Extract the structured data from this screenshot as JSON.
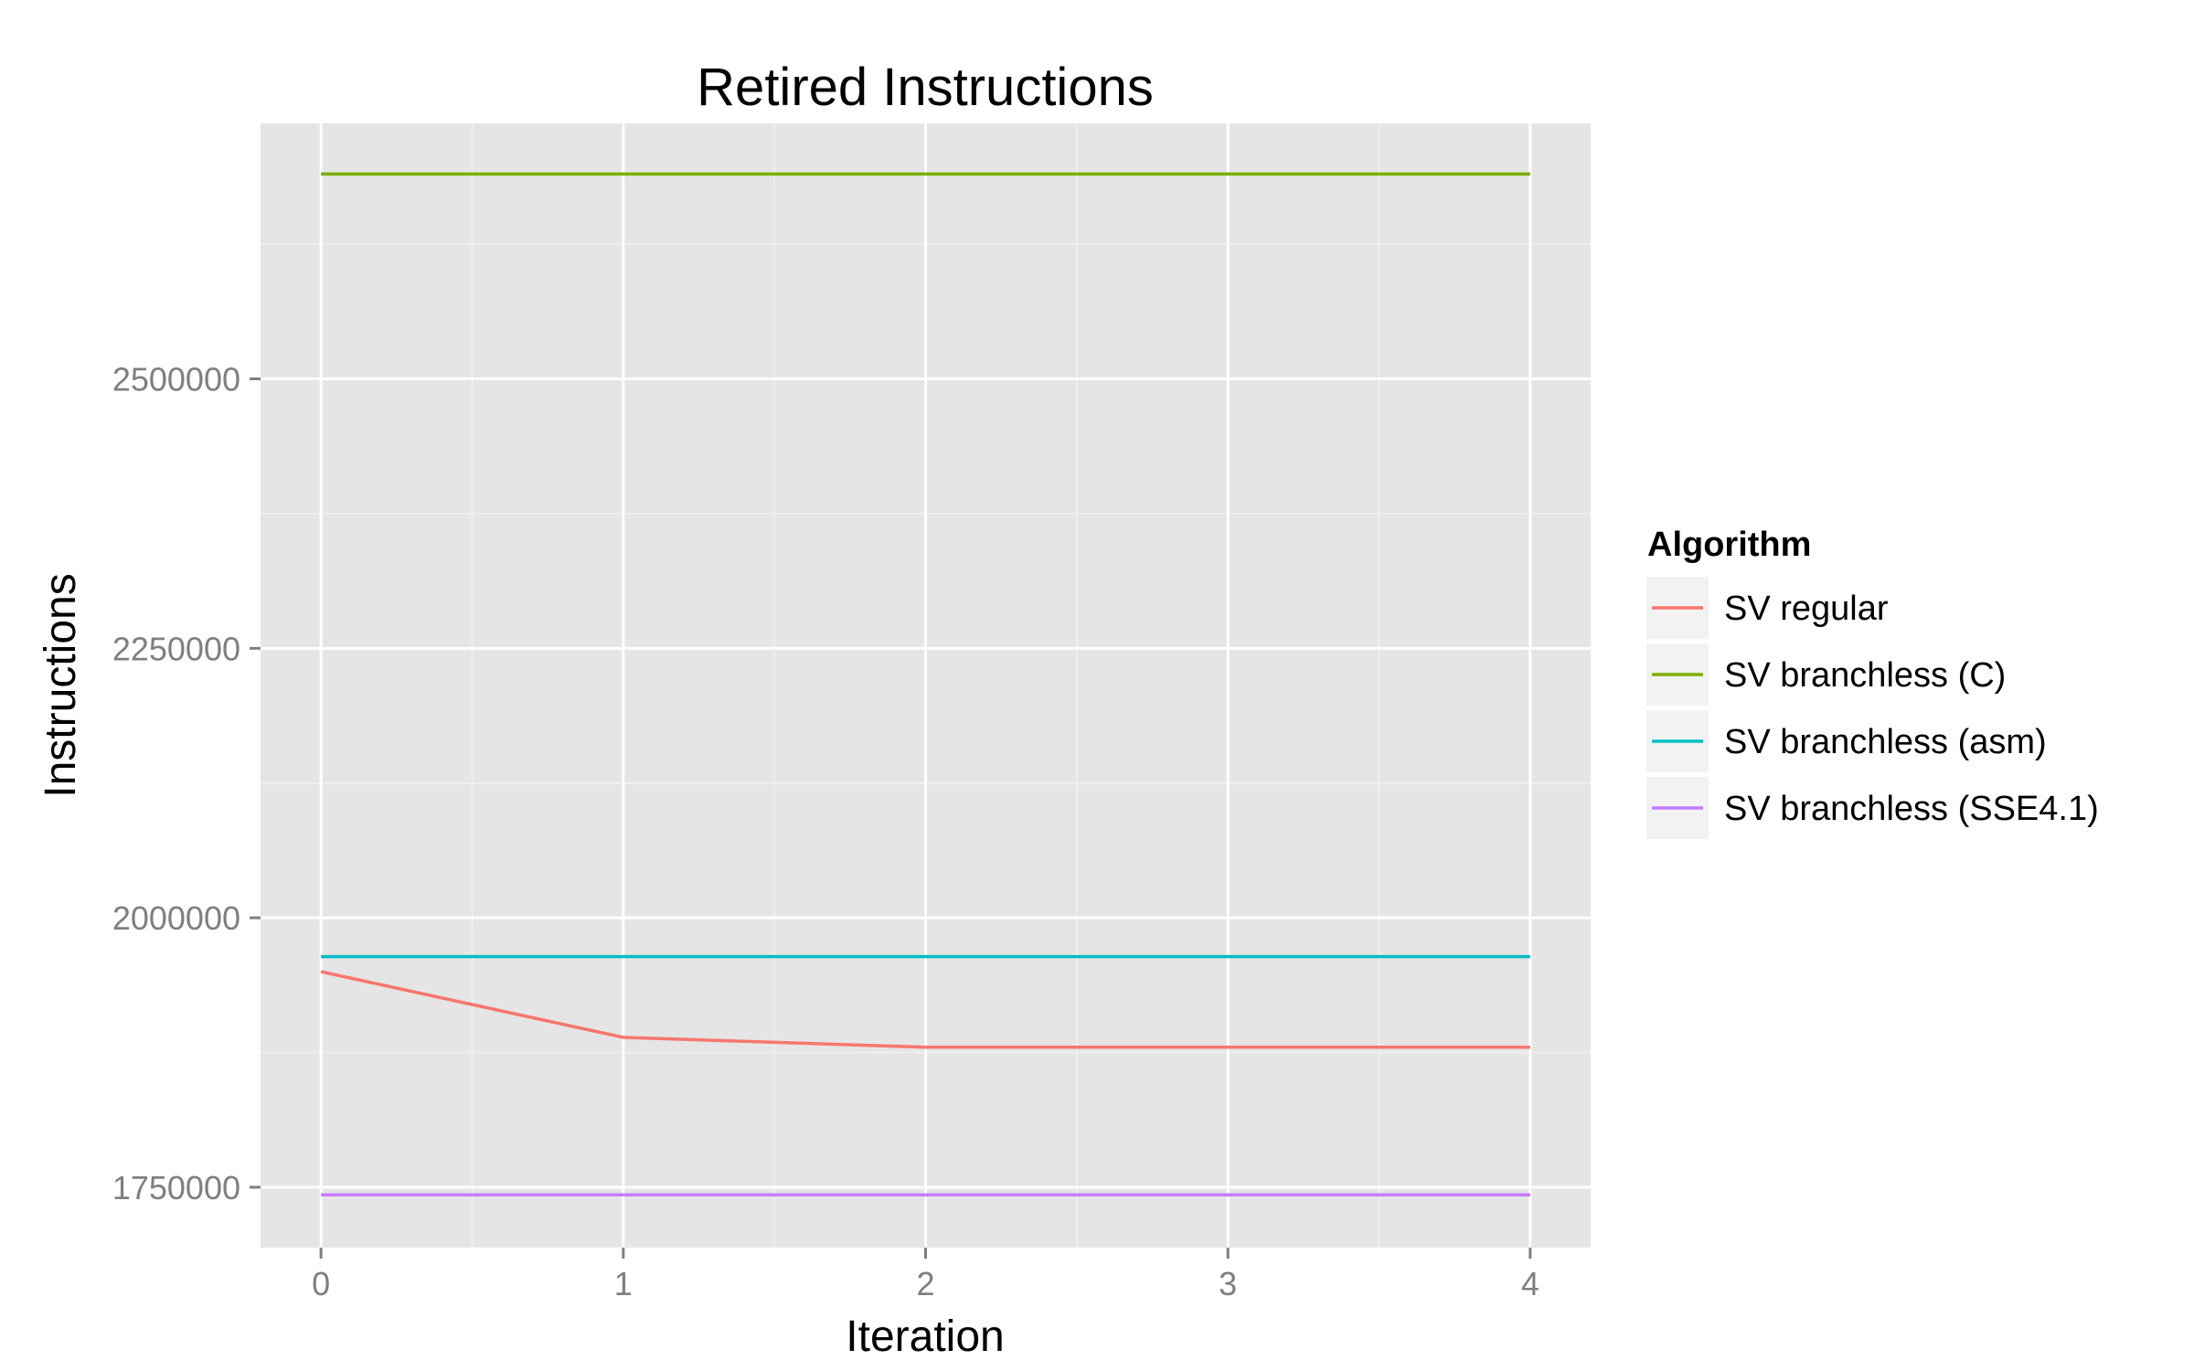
{
  "chart_data": {
    "type": "line",
    "title": "Retired Instructions",
    "xlabel": "Iteration",
    "ylabel": "Instructions",
    "x": [
      0,
      1,
      2,
      3,
      4
    ],
    "xticks": [
      "0",
      "1",
      "2",
      "3",
      "4"
    ],
    "yticks": [
      "1750000",
      "2000000",
      "2250000",
      "2500000"
    ],
    "xlim": [
      -0.2,
      4.2
    ],
    "ylim": [
      1694000,
      2737000
    ],
    "grid": true,
    "legend": {
      "title": "Algorithm",
      "position": "right"
    },
    "series": [
      {
        "name": "SV regular",
        "color": "#F8766D",
        "values": [
          1950000,
          1889000,
          1880000,
          1880000,
          1880000
        ]
      },
      {
        "name": "SV branchless (C)",
        "color": "#7CAE00",
        "values": [
          2690000,
          2690000,
          2690000,
          2690000,
          2690000
        ]
      },
      {
        "name": "SV branchless (asm)",
        "color": "#00BFC4",
        "values": [
          1964000,
          1964000,
          1964000,
          1964000,
          1964000
        ]
      },
      {
        "name": "SV branchless (SSE4.1)",
        "color": "#C77CFF",
        "values": [
          1743000,
          1743000,
          1743000,
          1743000,
          1743000
        ]
      }
    ]
  }
}
